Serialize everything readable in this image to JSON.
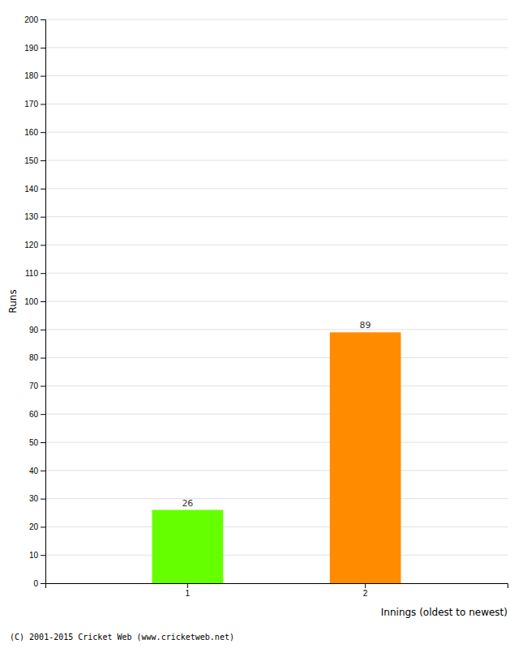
{
  "chart_data": {
    "type": "bar",
    "categories": [
      "1",
      "2"
    ],
    "values": [
      26,
      89
    ],
    "colors": [
      "#66ff00",
      "#ff8c00"
    ],
    "xlabel": "Innings (oldest to newest)",
    "ylabel": "Runs",
    "ylim": [
      0,
      200
    ],
    "yticks": [
      0,
      10,
      20,
      30,
      40,
      50,
      60,
      70,
      80,
      90,
      100,
      110,
      120,
      130,
      140,
      150,
      160,
      170,
      180,
      190,
      200
    ],
    "grid": true,
    "data_labels": true,
    "annotations": [
      "(C) 2001-2015 Cricket Web (www.cricketweb.net)"
    ]
  }
}
